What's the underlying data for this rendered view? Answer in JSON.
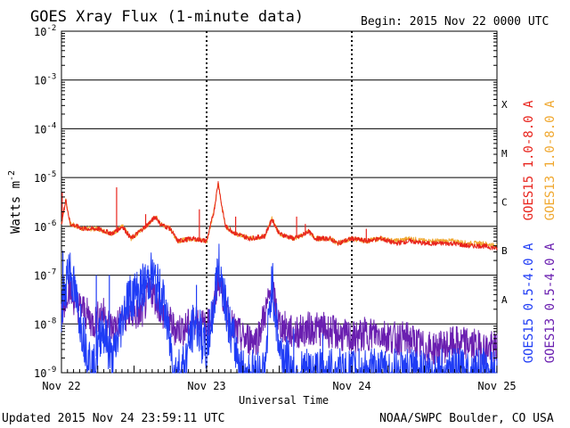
{
  "chart_data": {
    "type": "line",
    "title": "GOES Xray Flux (1-minute data)",
    "begin_label": "Begin:  2015 Nov 22 0000 UTC",
    "xlabel": "Universal Time",
    "ylabel": "Watts m",
    "ylabel_exp": "-2",
    "y_scale": "log",
    "ylim_exp": [
      -9,
      -2
    ],
    "y_tick_exponents": [
      -9,
      -8,
      -7,
      -6,
      -5,
      -4,
      -3,
      -2
    ],
    "x_tick_labels": [
      "Nov 22",
      "Nov 23",
      "Nov 24",
      "Nov 25"
    ],
    "x_range_days": [
      0,
      3
    ],
    "flare_classes": [
      {
        "label": "X",
        "exp": -4
      },
      {
        "label": "M",
        "exp": -5
      },
      {
        "label": "C",
        "exp": -6
      },
      {
        "label": "B",
        "exp": -7
      },
      {
        "label": "A",
        "exp": -8
      }
    ],
    "grid": true,
    "legend_placement": "right, vertical",
    "series": [
      {
        "name": "GOES15 1.0-8.0 A",
        "color": "#e8231c",
        "kind": "long",
        "points": [
          [
            0,
            -5.95
          ],
          [
            0.03,
            -5.45
          ],
          [
            0.06,
            -5.95
          ],
          [
            0.15,
            -6.05
          ],
          [
            0.25,
            -6.05
          ],
          [
            0.35,
            -6.15
          ],
          [
            0.42,
            -6.0
          ],
          [
            0.48,
            -6.25
          ],
          [
            0.58,
            -6.0
          ],
          [
            0.65,
            -5.8
          ],
          [
            0.68,
            -5.95
          ],
          [
            0.75,
            -6.05
          ],
          [
            0.8,
            -6.3
          ],
          [
            0.9,
            -6.25
          ],
          [
            1.0,
            -6.3
          ],
          [
            1.05,
            -5.7
          ],
          [
            1.08,
            -5.1
          ],
          [
            1.1,
            -5.5
          ],
          [
            1.13,
            -6.0
          ],
          [
            1.2,
            -6.15
          ],
          [
            1.3,
            -6.25
          ],
          [
            1.4,
            -6.2
          ],
          [
            1.45,
            -5.85
          ],
          [
            1.5,
            -6.15
          ],
          [
            1.6,
            -6.25
          ],
          [
            1.65,
            -6.2
          ],
          [
            1.7,
            -6.1
          ],
          [
            1.75,
            -6.25
          ],
          [
            1.85,
            -6.25
          ],
          [
            1.9,
            -6.35
          ],
          [
            2.0,
            -6.25
          ],
          [
            2.1,
            -6.3
          ],
          [
            2.2,
            -6.25
          ],
          [
            2.3,
            -6.35
          ],
          [
            2.4,
            -6.3
          ],
          [
            2.5,
            -6.35
          ],
          [
            2.6,
            -6.35
          ],
          [
            2.7,
            -6.35
          ],
          [
            2.8,
            -6.4
          ],
          [
            2.9,
            -6.4
          ],
          [
            3.0,
            -6.45
          ]
        ],
        "spikes": [
          [
            0.005,
            -5.3
          ],
          [
            0.38,
            -5.2
          ],
          [
            0.58,
            -5.75
          ],
          [
            0.95,
            -5.65
          ],
          [
            1.2,
            -5.8
          ],
          [
            1.62,
            -5.8
          ],
          [
            1.68,
            -5.95
          ],
          [
            2.1,
            -6.05
          ]
        ]
      },
      {
        "name": "GOES13 1.0-8.0 A",
        "color": "#f0a830",
        "kind": "long",
        "points": [
          [
            0,
            -5.95
          ],
          [
            0.03,
            -5.45
          ],
          [
            0.06,
            -5.95
          ],
          [
            0.15,
            -6.05
          ],
          [
            0.25,
            -6.05
          ],
          [
            0.35,
            -6.15
          ],
          [
            0.42,
            -6.0
          ],
          [
            0.48,
            -6.25
          ],
          [
            0.58,
            -6.0
          ],
          [
            0.65,
            -5.8
          ],
          [
            0.68,
            -5.95
          ],
          [
            0.75,
            -6.05
          ],
          [
            0.8,
            -6.3
          ],
          [
            0.9,
            -6.25
          ],
          [
            1.0,
            -6.3
          ],
          [
            1.05,
            -5.7
          ],
          [
            1.08,
            -5.1
          ],
          [
            1.1,
            -5.5
          ],
          [
            1.13,
            -6.0
          ],
          [
            1.2,
            -6.15
          ],
          [
            1.3,
            -6.25
          ],
          [
            1.4,
            -6.2
          ],
          [
            1.45,
            -5.85
          ],
          [
            1.5,
            -6.15
          ],
          [
            1.6,
            -6.25
          ],
          [
            1.65,
            -6.2
          ],
          [
            1.7,
            -6.1
          ],
          [
            1.75,
            -6.25
          ],
          [
            1.85,
            -6.25
          ],
          [
            1.9,
            -6.35
          ],
          [
            2.0,
            -6.25
          ],
          [
            2.1,
            -6.3
          ],
          [
            2.2,
            -6.25
          ],
          [
            2.3,
            -6.3
          ],
          [
            2.4,
            -6.25
          ],
          [
            2.5,
            -6.3
          ],
          [
            2.6,
            -6.3
          ],
          [
            2.7,
            -6.3
          ],
          [
            2.8,
            -6.35
          ],
          [
            2.9,
            -6.35
          ],
          [
            3.0,
            -6.4
          ]
        ],
        "spikes": []
      },
      {
        "name": "GOES15 0.5-4.0 A",
        "color": "#1f3cf5",
        "kind": "short",
        "points": [
          [
            0,
            -7.8
          ],
          [
            0.05,
            -6.75
          ],
          [
            0.1,
            -7.5
          ],
          [
            0.15,
            -8.2
          ],
          [
            0.22,
            -9.0
          ],
          [
            0.28,
            -8.0
          ],
          [
            0.35,
            -8.8
          ],
          [
            0.45,
            -7.5
          ],
          [
            0.55,
            -7.3
          ],
          [
            0.62,
            -7.0
          ],
          [
            0.7,
            -7.5
          ],
          [
            0.78,
            -9.0
          ],
          [
            0.85,
            -8.8
          ],
          [
            0.92,
            -7.9
          ],
          [
            1.0,
            -8.6
          ],
          [
            1.05,
            -7.6
          ],
          [
            1.08,
            -6.8
          ],
          [
            1.12,
            -7.3
          ],
          [
            1.16,
            -8.1
          ],
          [
            1.25,
            -9.0
          ],
          [
            1.4,
            -9.0
          ],
          [
            1.45,
            -7.1
          ],
          [
            1.5,
            -8.5
          ],
          [
            1.6,
            -9.0
          ],
          [
            1.7,
            -9.0
          ],
          [
            1.8,
            -9.0
          ],
          [
            2.0,
            -9.0
          ],
          [
            2.2,
            -9.0
          ],
          [
            2.5,
            -9.0
          ],
          [
            3.0,
            -9.0
          ]
        ],
        "spikes": [
          [
            0.01,
            -6.5
          ],
          [
            0.24,
            -7.0
          ],
          [
            0.33,
            -7.0
          ],
          [
            0.5,
            -7.1
          ],
          [
            0.62,
            -7.1
          ],
          [
            0.72,
            -7.5
          ],
          [
            0.93,
            -7.2
          ],
          [
            1.02,
            -7.7
          ],
          [
            1.6,
            -8.1
          ],
          [
            1.8,
            -8.2
          ],
          [
            2.05,
            -8.5
          ]
        ]
      },
      {
        "name": "GOES13 0.5-4.0 A",
        "color": "#6a1fb0",
        "kind": "short",
        "points": [
          [
            0,
            -7.8
          ],
          [
            0.05,
            -7.2
          ],
          [
            0.1,
            -7.6
          ],
          [
            0.15,
            -7.7
          ],
          [
            0.22,
            -8.0
          ],
          [
            0.28,
            -7.75
          ],
          [
            0.35,
            -8.1
          ],
          [
            0.45,
            -7.8
          ],
          [
            0.55,
            -7.8
          ],
          [
            0.62,
            -7.3
          ],
          [
            0.7,
            -7.8
          ],
          [
            0.78,
            -8.1
          ],
          [
            0.85,
            -8.1
          ],
          [
            0.92,
            -7.9
          ],
          [
            1.0,
            -8.1
          ],
          [
            1.05,
            -7.7
          ],
          [
            1.08,
            -7.0
          ],
          [
            1.12,
            -7.5
          ],
          [
            1.16,
            -8.0
          ],
          [
            1.25,
            -8.3
          ],
          [
            1.35,
            -8.3
          ],
          [
            1.45,
            -7.3
          ],
          [
            1.5,
            -8.0
          ],
          [
            1.6,
            -8.2
          ],
          [
            1.7,
            -8.1
          ],
          [
            1.8,
            -8.1
          ],
          [
            1.9,
            -8.2
          ],
          [
            2.0,
            -8.3
          ],
          [
            2.1,
            -8.2
          ],
          [
            2.2,
            -8.2
          ],
          [
            2.3,
            -8.3
          ],
          [
            2.4,
            -8.3
          ],
          [
            2.5,
            -8.5
          ],
          [
            2.6,
            -8.5
          ],
          [
            2.7,
            -8.4
          ],
          [
            2.8,
            -8.4
          ],
          [
            2.9,
            -8.5
          ],
          [
            3.0,
            -8.5
          ]
        ],
        "spikes": []
      }
    ]
  },
  "footer": {
    "updated": "Updated 2015 Nov 24 23:59:11 UTC",
    "credit": "NOAA/SWPC Boulder, CO USA"
  }
}
